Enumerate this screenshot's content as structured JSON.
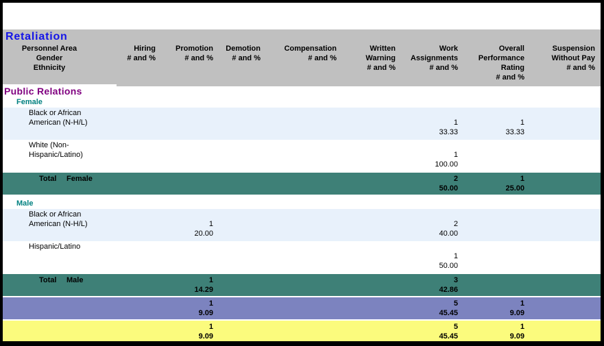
{
  "report": {
    "title": "Retaliation",
    "colors": {
      "header_bg": "#C0C0C0",
      "title_blue": "#1414E8",
      "section_purple": "#800080",
      "gender_teal": "#008080",
      "row_blue": "#E8F1FB",
      "total_teal": "#3E8077",
      "summary_purple": "#7C83BF",
      "summary_yellow": "#FBFB7D"
    },
    "header": {
      "row_axis_lines": [
        "Personnel Area",
        "Gender",
        "Ethnicity"
      ],
      "columns": [
        {
          "id": "hiring",
          "lines": [
            "Hiring",
            "# and %"
          ]
        },
        {
          "id": "promotion",
          "lines": [
            "Promotion",
            "# and %"
          ]
        },
        {
          "id": "demotion",
          "lines": [
            "Demotion",
            "# and %"
          ]
        },
        {
          "id": "compensation",
          "lines": [
            "Compensation",
            "# and %"
          ]
        },
        {
          "id": "written-warning",
          "lines": [
            "Written",
            "Warning",
            "# and %"
          ]
        },
        {
          "id": "work-assignments",
          "lines": [
            "Work",
            "Assignments",
            "# and %"
          ]
        },
        {
          "id": "overall-performance-rating",
          "lines": [
            "Overall",
            "Performance",
            "Rating",
            "# and %"
          ]
        },
        {
          "id": "suspension-without-pay",
          "lines": [
            "Suspension",
            "Without Pay",
            "# and %"
          ]
        }
      ]
    },
    "sections": [
      {
        "name": "Public Relations",
        "groups": [
          {
            "gender": "Female",
            "rows": [
              {
                "ethnicity": "Black or African American (N-H/L)",
                "shade": "blue",
                "cells": [
                  null,
                  null,
                  null,
                  null,
                  null,
                  [
                    "1",
                    "33.33"
                  ],
                  [
                    "1",
                    "33.33"
                  ],
                  null
                ]
              },
              {
                "ethnicity": "White (Non-Hispanic/Latino)",
                "shade": "white",
                "cells": [
                  null,
                  null,
                  null,
                  null,
                  null,
                  [
                    "1",
                    "100.00"
                  ],
                  null,
                  null
                ]
              }
            ],
            "total": {
              "label": "Total",
              "gender": "Female",
              "cells": [
                null,
                null,
                null,
                null,
                null,
                [
                  "2",
                  "50.00"
                ],
                [
                  "1",
                  "25.00"
                ],
                null
              ]
            }
          },
          {
            "gender": "Male",
            "rows": [
              {
                "ethnicity": "Black or African American (N-H/L)",
                "shade": "blue",
                "cells": [
                  null,
                  [
                    "1",
                    "20.00"
                  ],
                  null,
                  null,
                  null,
                  [
                    "2",
                    "40.00"
                  ],
                  null,
                  null
                ]
              },
              {
                "ethnicity": "Hispanic/Latino",
                "shade": "white",
                "cells": [
                  null,
                  null,
                  null,
                  null,
                  null,
                  [
                    "1",
                    "50.00"
                  ],
                  null,
                  null
                ]
              }
            ],
            "total": {
              "label": "Total",
              "gender": "Male",
              "cells": [
                null,
                [
                  "1",
                  "14.29"
                ],
                null,
                null,
                null,
                [
                  "3",
                  "42.86"
                ],
                null,
                null
              ]
            }
          }
        ]
      }
    ],
    "summary_rows": [
      {
        "shade": "purple",
        "cells": [
          null,
          [
            "1",
            "9.09"
          ],
          null,
          null,
          null,
          [
            "5",
            "45.45"
          ],
          [
            "1",
            "9.09"
          ],
          null
        ]
      },
      {
        "shade": "yellow",
        "cells": [
          null,
          [
            "1",
            "9.09"
          ],
          null,
          null,
          null,
          [
            "5",
            "45.45"
          ],
          [
            "1",
            "9.09"
          ],
          null
        ]
      }
    ]
  }
}
